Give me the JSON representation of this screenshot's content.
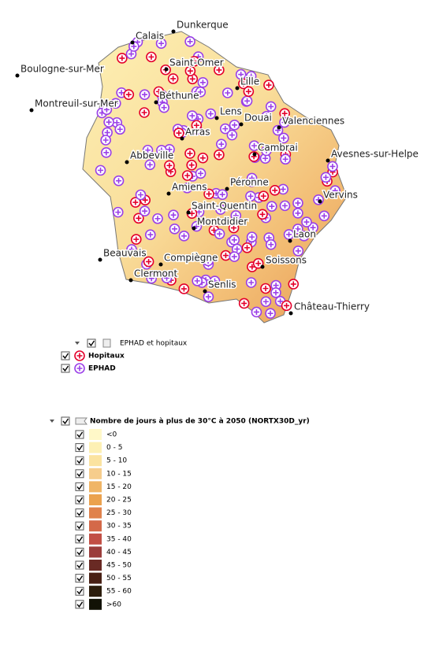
{
  "map": {
    "cities": [
      "Dunkerque",
      "Calais",
      "Boulogne-sur-Mer",
      "Saint-Omer",
      "Lille",
      "Montreuil-sur-Mer",
      "Béthune",
      "Lens",
      "Douai",
      "Valenciennes",
      "Arras",
      "Cambrai",
      "Avesnes-sur-Helpe",
      "Abbeville",
      "Péronne",
      "Amiens",
      "Vervins",
      "Saint-Quentin",
      "Montdidier",
      "Laon",
      "Beauvais",
      "Compiègne",
      "Soissons",
      "Clermont",
      "Senlis",
      "Château-Thierry"
    ]
  },
  "legend": {
    "group": {
      "label": "EPHAD et hopitaux",
      "items": [
        "Hopitaux",
        "EPHAD"
      ]
    },
    "layer": {
      "label": "Nombre de jours à plus de 30°C à 2050 (NORTX30D_yr)",
      "classes": [
        "<0",
        "0 - 5",
        "5 - 10",
        "10 - 15",
        "15 - 20",
        "20 - 25",
        "25 - 30",
        "30 - 35",
        "35 - 40",
        "40 - 45",
        "45 - 50",
        "50 - 55",
        "55 - 60",
        ">60"
      ],
      "colors": [
        "#fff8c8",
        "#fdf0b4",
        "#fbe3a0",
        "#f6cd8c",
        "#f0b566",
        "#eba24e",
        "#e0824b",
        "#d46949",
        "#c24f45",
        "#9b3d3b",
        "#692a24",
        "#482014",
        "#2c1d0c",
        "#121206"
      ]
    }
  }
}
